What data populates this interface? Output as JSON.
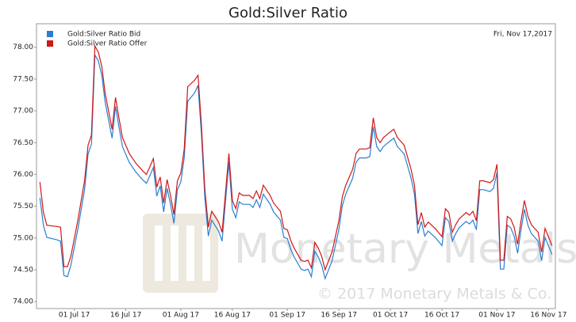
{
  "chart_data": {
    "type": "line",
    "title": "Gold:Silver Ratio",
    "annotation": "Fri, Nov 17,2017",
    "watermark": "Monetary Metals",
    "copyright": "© 2017 Monetary Metals & Co.",
    "x": [
      "2017-06-21",
      "2017-06-22",
      "2017-06-23",
      "2017-06-26",
      "2017-06-27",
      "2017-06-28",
      "2017-06-29",
      "2017-06-30",
      "2017-07-02",
      "2017-07-04",
      "2017-07-05",
      "2017-07-06",
      "2017-07-07",
      "2017-07-08",
      "2017-07-09",
      "2017-07-10",
      "2017-07-12",
      "2017-07-13",
      "2017-07-14",
      "2017-07-15",
      "2017-07-17",
      "2017-07-19",
      "2017-07-21",
      "2017-07-22",
      "2017-07-23",
      "2017-07-24",
      "2017-07-25",
      "2017-07-26",
      "2017-07-27",
      "2017-07-28",
      "2017-07-29",
      "2017-07-30",
      "2017-07-31",
      "2017-08-01",
      "2017-08-02",
      "2017-08-03",
      "2017-08-05",
      "2017-08-06",
      "2017-08-07",
      "2017-08-08",
      "2017-08-09",
      "2017-08-10",
      "2017-08-12",
      "2017-08-13",
      "2017-08-15",
      "2017-08-16",
      "2017-08-17",
      "2017-08-18",
      "2017-08-19",
      "2017-08-21",
      "2017-08-22",
      "2017-08-23",
      "2017-08-24",
      "2017-08-25",
      "2017-08-27",
      "2017-08-28",
      "2017-08-30",
      "2017-08-31",
      "2017-09-01",
      "2017-09-02",
      "2017-09-03",
      "2017-09-05",
      "2017-09-06",
      "2017-09-07",
      "2017-09-08",
      "2017-09-09",
      "2017-09-10",
      "2017-09-11",
      "2017-09-12",
      "2017-09-14",
      "2017-09-16",
      "2017-09-17",
      "2017-09-18",
      "2017-09-20",
      "2017-09-21",
      "2017-09-22",
      "2017-09-24",
      "2017-09-25",
      "2017-09-26",
      "2017-09-27",
      "2017-09-28",
      "2017-09-29",
      "2017-10-01",
      "2017-10-02",
      "2017-10-03",
      "2017-10-05",
      "2017-10-06",
      "2017-10-07",
      "2017-10-08",
      "2017-10-09",
      "2017-10-10",
      "2017-10-11",
      "2017-10-12",
      "2017-10-14",
      "2017-10-16",
      "2017-10-17",
      "2017-10-18",
      "2017-10-19",
      "2017-10-20",
      "2017-10-21",
      "2017-10-23",
      "2017-10-24",
      "2017-10-25",
      "2017-10-26",
      "2017-10-27",
      "2017-10-28",
      "2017-10-30",
      "2017-10-31",
      "2017-11-01",
      "2017-11-02",
      "2017-11-03",
      "2017-11-04",
      "2017-11-05",
      "2017-11-06",
      "2017-11-07",
      "2017-11-08",
      "2017-11-09",
      "2017-11-10",
      "2017-11-11",
      "2017-11-13",
      "2017-11-14",
      "2017-11-15",
      "2017-11-17"
    ],
    "series": [
      {
        "name": "Gold:Silver Ratio Bid",
        "color": "#2b7fd0",
        "values": [
          75.63,
          75.2,
          75.01,
          74.97,
          74.95,
          74.41,
          74.39,
          74.57,
          75.13,
          75.76,
          76.32,
          76.48,
          77.88,
          77.78,
          77.56,
          77.13,
          76.57,
          77.07,
          76.75,
          76.44,
          76.19,
          76.03,
          75.91,
          75.86,
          75.98,
          76.11,
          75.66,
          75.82,
          75.41,
          75.78,
          75.53,
          75.23,
          75.76,
          75.88,
          76.26,
          77.15,
          77.28,
          77.4,
          76.63,
          75.63,
          75.03,
          75.28,
          75.11,
          74.95,
          76.19,
          75.45,
          75.32,
          75.57,
          75.53,
          75.53,
          75.48,
          75.6,
          75.48,
          75.69,
          75.53,
          75.41,
          75.28,
          75.01,
          74.99,
          74.82,
          74.7,
          74.51,
          74.49,
          74.51,
          74.39,
          74.79,
          74.7,
          74.57,
          74.36,
          74.64,
          75.13,
          75.51,
          75.69,
          75.94,
          76.19,
          76.26,
          76.26,
          76.28,
          76.75,
          76.44,
          76.36,
          76.44,
          76.53,
          76.57,
          76.44,
          76.32,
          76.13,
          75.94,
          75.69,
          75.07,
          75.26,
          75.03,
          75.11,
          75.01,
          74.88,
          75.32,
          75.26,
          74.95,
          75.07,
          75.16,
          75.26,
          75.22,
          75.28,
          75.13,
          75.76,
          75.76,
          75.73,
          75.78,
          76.03,
          74.51,
          74.51,
          75.2,
          75.16,
          75.03,
          74.76,
          75.13,
          75.45,
          75.2,
          75.07,
          74.95,
          74.64,
          75.01,
          74.74
        ]
      },
      {
        "name": "Gold:Silver Ratio Offer",
        "color": "#d01818",
        "values": [
          75.88,
          75.4,
          75.2,
          75.18,
          75.17,
          74.55,
          74.55,
          74.71,
          75.27,
          75.9,
          76.46,
          76.62,
          78.02,
          77.92,
          77.7,
          77.27,
          76.71,
          77.21,
          76.89,
          76.58,
          76.33,
          76.17,
          76.05,
          76.0,
          76.12,
          76.25,
          75.8,
          75.96,
          75.55,
          75.92,
          75.67,
          75.37,
          75.9,
          76.02,
          76.4,
          77.38,
          77.48,
          77.56,
          76.77,
          75.77,
          75.17,
          75.42,
          75.25,
          75.09,
          76.33,
          75.59,
          75.46,
          75.71,
          75.67,
          75.67,
          75.62,
          75.74,
          75.62,
          75.83,
          75.67,
          75.55,
          75.42,
          75.15,
          75.13,
          74.96,
          74.84,
          74.65,
          74.63,
          74.65,
          74.53,
          74.93,
          74.84,
          74.71,
          74.5,
          74.78,
          75.27,
          75.65,
          75.83,
          76.08,
          76.33,
          76.4,
          76.4,
          76.42,
          76.89,
          76.58,
          76.5,
          76.58,
          76.67,
          76.71,
          76.58,
          76.46,
          76.27,
          76.08,
          75.83,
          75.21,
          75.4,
          75.17,
          75.25,
          75.15,
          75.02,
          75.46,
          75.4,
          75.09,
          75.21,
          75.3,
          75.4,
          75.36,
          75.42,
          75.27,
          75.9,
          75.9,
          75.87,
          75.92,
          76.16,
          74.65,
          74.65,
          75.34,
          75.3,
          75.17,
          74.9,
          75.27,
          75.59,
          75.34,
          75.21,
          75.09,
          74.78,
          75.15,
          74.88
        ]
      }
    ],
    "xlim": [
      "2017-06-20",
      "2017-11-18"
    ],
    "xticks": [
      {
        "value": "2017-07-01",
        "label": "01 Jul 17"
      },
      {
        "value": "2017-07-16",
        "label": "16 Jul 17"
      },
      {
        "value": "2017-08-01",
        "label": "01 Aug 17"
      },
      {
        "value": "2017-08-16",
        "label": "16 Aug 17"
      },
      {
        "value": "2017-09-01",
        "label": "01 Sep 17"
      },
      {
        "value": "2017-09-16",
        "label": "16 Sep 17"
      },
      {
        "value": "2017-10-01",
        "label": "01 Oct 17"
      },
      {
        "value": "2017-10-16",
        "label": "16 Oct 17"
      },
      {
        "value": "2017-11-01",
        "label": "01 Nov 17"
      },
      {
        "value": "2017-11-16",
        "label": "16 Nov 17"
      }
    ],
    "ylim": [
      73.89,
      78.37
    ],
    "yticks": [
      {
        "value": 74,
        "label": "74.00"
      },
      {
        "value": 74.5,
        "label": "74.50"
      },
      {
        "value": 75,
        "label": "75.00"
      },
      {
        "value": 75.5,
        "label": "75.50"
      },
      {
        "value": 76,
        "label": "76.00"
      },
      {
        "value": 76.5,
        "label": "76.50"
      },
      {
        "value": 77,
        "label": "77.00"
      },
      {
        "value": 77.5,
        "label": "77.50"
      },
      {
        "value": 78,
        "label": "78.00"
      }
    ],
    "grid": false,
    "legend": "top-left"
  }
}
